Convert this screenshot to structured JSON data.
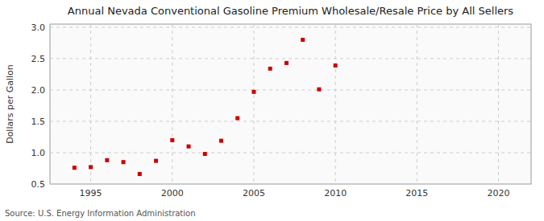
{
  "chart_data": {
    "type": "scatter",
    "title": "Annual Nevada Conventional Gasoline Premium Wholesale/Resale Price by All Sellers",
    "ylabel": "Dollars per Gallon",
    "source": "Source: U.S. Energy Information Administration",
    "color": "#cc0000",
    "marker": "square",
    "grid": true,
    "xlim": [
      1992.5,
      2022
    ],
    "ylim": [
      0.5,
      3.05
    ],
    "xticks": [
      1995,
      2000,
      2005,
      2010,
      2015,
      2020
    ],
    "yticks": [
      0.5,
      {
        "value": 1.0,
        "label": "1.0"
      },
      1.5,
      {
        "value": 2.0,
        "label": "2.0"
      },
      2.5,
      {
        "value": 3.0,
        "label": "3.0"
      }
    ],
    "x": [
      1994,
      1995,
      1996,
      1997,
      1998,
      1999,
      2000,
      2001,
      2002,
      2003,
      2004,
      2005,
      2006,
      2007,
      2008,
      2009,
      2010
    ],
    "values": [
      0.76,
      0.77,
      0.88,
      0.85,
      0.66,
      0.87,
      1.2,
      1.1,
      0.98,
      1.19,
      1.55,
      1.97,
      2.34,
      2.43,
      2.8,
      2.01,
      2.39
    ]
  }
}
